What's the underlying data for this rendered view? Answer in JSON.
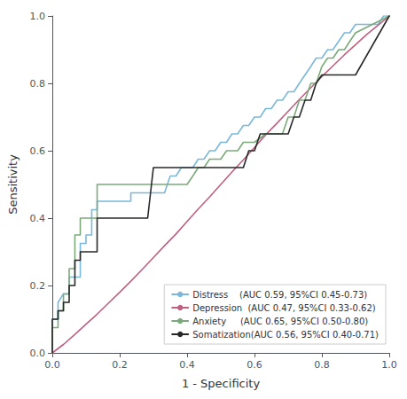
{
  "chart_data": {
    "type": "line",
    "xlabel": "1 - Specificity",
    "ylabel": "Sensitivity",
    "xlim": [
      0.0,
      1.0
    ],
    "ylim": [
      0.0,
      1.0
    ],
    "xticks": [
      {
        "value": 0.0,
        "label": "0.0"
      },
      {
        "value": 0.2,
        "label": "0.2"
      },
      {
        "value": 0.4,
        "label": "0.4"
      },
      {
        "value": 0.6,
        "label": "0.6"
      },
      {
        "value": 0.8,
        "label": "0.8"
      },
      {
        "value": 1.0,
        "label": "1.0"
      }
    ],
    "yticks": [
      {
        "value": 0.0,
        "label": "0.0"
      },
      {
        "value": 0.2,
        "label": "0.2"
      },
      {
        "value": 0.4,
        "label": "0.4"
      },
      {
        "value": 0.6,
        "label": "0.6"
      },
      {
        "value": 0.8,
        "label": "0.8"
      },
      {
        "value": 1.0,
        "label": "1.0"
      }
    ],
    "grid": false,
    "legend": "lower right",
    "series": [
      {
        "name": "Distress    (AUC 0.59, 95%CI 0.45-0.73)",
        "color": "#7ab8d9",
        "x": [
          0.0,
          0.0,
          0.017,
          0.017,
          0.033,
          0.05,
          0.05,
          0.067,
          0.083,
          0.083,
          0.1,
          0.1,
          0.117,
          0.117,
          0.133,
          0.133,
          0.15,
          0.167,
          0.167,
          0.183,
          0.183,
          0.2,
          0.2,
          0.217,
          0.233,
          0.233,
          0.25,
          0.267,
          0.283,
          0.3,
          0.317,
          0.333,
          0.35,
          0.367,
          0.383,
          0.4,
          0.417,
          0.433,
          0.45,
          0.467,
          0.483,
          0.5,
          0.517,
          0.533,
          0.55,
          0.567,
          0.583,
          0.6,
          0.617,
          0.633,
          0.65,
          0.667,
          0.683,
          0.7,
          0.717,
          0.733,
          0.75,
          0.767,
          0.783,
          0.8,
          0.817,
          0.833,
          0.85,
          0.867,
          0.883,
          0.9,
          0.917,
          0.933,
          0.95,
          0.967,
          0.983,
          1.0
        ],
        "values": [
          0.0,
          0.1,
          0.1,
          0.15,
          0.175,
          0.175,
          0.225,
          0.225,
          0.225,
          0.325,
          0.325,
          0.35,
          0.35,
          0.425,
          0.425,
          0.45,
          0.45,
          0.45,
          0.45,
          0.45,
          0.45,
          0.45,
          0.45,
          0.45,
          0.45,
          0.475,
          0.475,
          0.475,
          0.475,
          0.475,
          0.475,
          0.475,
          0.525,
          0.525,
          0.55,
          0.55,
          0.55,
          0.575,
          0.575,
          0.6,
          0.6,
          0.625,
          0.625,
          0.65,
          0.65,
          0.675,
          0.675,
          0.7,
          0.7,
          0.725,
          0.725,
          0.75,
          0.75,
          0.775,
          0.775,
          0.8,
          0.825,
          0.85,
          0.875,
          0.875,
          0.9,
          0.9,
          0.925,
          0.95,
          0.95,
          0.975,
          0.975,
          0.975,
          0.975,
          0.975,
          1.0,
          1.0
        ]
      },
      {
        "name": "Depression  (AUC 0.47, 95%CI 0.33-0.62)",
        "color": "#c06080",
        "x": [
          0.0,
          0.033,
          0.067,
          0.1,
          0.133,
          0.167,
          0.2,
          0.233,
          0.267,
          0.3,
          0.333,
          0.367,
          0.4,
          0.433,
          0.467,
          0.5,
          0.533,
          0.567,
          0.6,
          0.633,
          0.667,
          0.7,
          0.733,
          0.767,
          0.8,
          0.833,
          0.867,
          0.9,
          0.933,
          0.967,
          1.0
        ],
        "values": [
          0.0,
          0.025,
          0.055,
          0.085,
          0.115,
          0.148,
          0.18,
          0.213,
          0.248,
          0.283,
          0.318,
          0.353,
          0.39,
          0.427,
          0.463,
          0.5,
          0.537,
          0.573,
          0.61,
          0.647,
          0.682,
          0.717,
          0.752,
          0.787,
          0.82,
          0.852,
          0.885,
          0.915,
          0.945,
          0.973,
          1.0
        ]
      },
      {
        "name": "Anxiety     (AUC 0.65, 95%CI 0.50-0.80)",
        "color": "#7aaa7a",
        "x": [
          0.0,
          0.0,
          0.017,
          0.017,
          0.033,
          0.033,
          0.05,
          0.05,
          0.067,
          0.067,
          0.083,
          0.083,
          0.1,
          0.1,
          0.117,
          0.133,
          0.133,
          0.15,
          0.167,
          0.167,
          0.183,
          0.2,
          0.2,
          0.217,
          0.233,
          0.25,
          0.267,
          0.283,
          0.3,
          0.317,
          0.333,
          0.35,
          0.367,
          0.4,
          0.417,
          0.433,
          0.45,
          0.467,
          0.5,
          0.517,
          0.55,
          0.567,
          0.6,
          0.633,
          0.65,
          0.667,
          0.683,
          0.7,
          0.717,
          0.733,
          0.75,
          0.767,
          0.783,
          0.8,
          0.817,
          0.833,
          0.85,
          0.867,
          0.883,
          0.9,
          1.0
        ],
        "values": [
          0.0,
          0.075,
          0.075,
          0.125,
          0.125,
          0.175,
          0.175,
          0.25,
          0.25,
          0.35,
          0.35,
          0.4,
          0.4,
          0.4,
          0.4,
          0.4,
          0.5,
          0.5,
          0.5,
          0.5,
          0.5,
          0.5,
          0.5,
          0.5,
          0.5,
          0.5,
          0.5,
          0.5,
          0.5,
          0.5,
          0.5,
          0.5,
          0.5,
          0.5,
          0.525,
          0.55,
          0.55,
          0.575,
          0.575,
          0.6,
          0.6,
          0.625,
          0.625,
          0.65,
          0.65,
          0.65,
          0.65,
          0.7,
          0.7,
          0.75,
          0.75,
          0.8,
          0.8,
          0.85,
          0.875,
          0.875,
          0.9,
          0.9,
          0.925,
          0.95,
          1.0
        ]
      },
      {
        "name": "Somatization(AUC 0.56, 95%CI 0.40-0.71)",
        "color": "#282828",
        "x": [
          0.0,
          0.0,
          0.017,
          0.017,
          0.033,
          0.033,
          0.05,
          0.05,
          0.067,
          0.067,
          0.083,
          0.083,
          0.1,
          0.1,
          0.117,
          0.133,
          0.133,
          0.15,
          0.167,
          0.183,
          0.2,
          0.217,
          0.233,
          0.25,
          0.267,
          0.283,
          0.3,
          0.317,
          0.333,
          0.35,
          0.367,
          0.383,
          0.4,
          0.417,
          0.433,
          0.45,
          0.467,
          0.483,
          0.5,
          0.517,
          0.533,
          0.55,
          0.567,
          0.583,
          0.6,
          0.617,
          0.633,
          0.65,
          0.667,
          0.683,
          0.7,
          0.717,
          0.733,
          0.75,
          0.767,
          0.783,
          0.8,
          0.817,
          0.833,
          0.85,
          0.867,
          0.883,
          0.9,
          1.0
        ],
        "values": [
          0.0,
          0.1,
          0.1,
          0.125,
          0.125,
          0.15,
          0.15,
          0.2,
          0.2,
          0.275,
          0.275,
          0.3,
          0.3,
          0.3,
          0.3,
          0.3,
          0.4,
          0.4,
          0.4,
          0.4,
          0.4,
          0.4,
          0.4,
          0.4,
          0.4,
          0.4,
          0.55,
          0.55,
          0.55,
          0.55,
          0.55,
          0.55,
          0.55,
          0.55,
          0.55,
          0.55,
          0.55,
          0.55,
          0.55,
          0.55,
          0.55,
          0.55,
          0.55,
          0.6,
          0.6,
          0.65,
          0.65,
          0.65,
          0.65,
          0.65,
          0.65,
          0.7,
          0.7,
          0.75,
          0.75,
          0.8,
          0.825,
          0.825,
          0.825,
          0.825,
          0.825,
          0.825,
          0.825,
          1.0
        ]
      }
    ]
  }
}
